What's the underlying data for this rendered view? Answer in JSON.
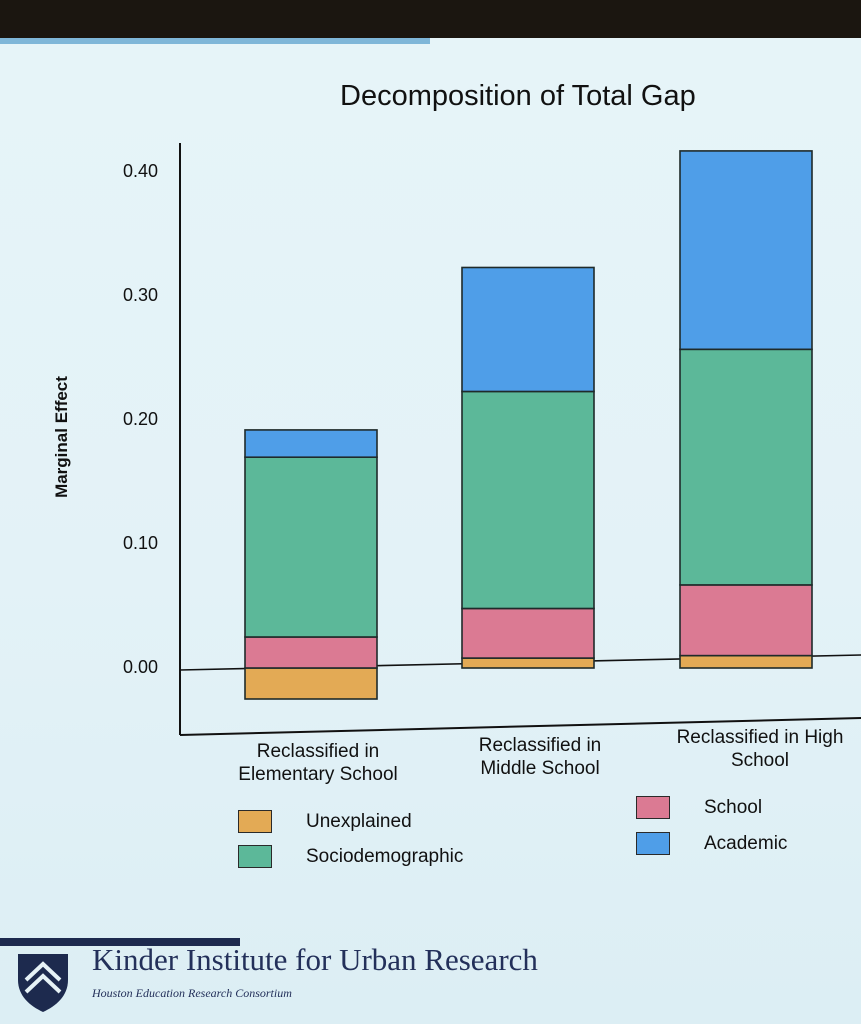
{
  "chart_data": {
    "type": "bar",
    "stacked": true,
    "title": "Decomposition of Total Gap",
    "ylabel": "Marginal Effect",
    "xlabel": "",
    "ylim": [
      -0.03,
      0.43
    ],
    "yticks": [
      "0.00",
      "0.10",
      "0.20",
      "0.30",
      "0.40"
    ],
    "categories": [
      "Reclassified in Elementary School",
      "Reclassified in Middle School",
      "Reclassified in High School"
    ],
    "category_lines": [
      [
        "Reclassified in",
        "Elementary School"
      ],
      [
        "Reclassified in",
        "Middle School"
      ],
      [
        "Reclassified in High",
        "School"
      ]
    ],
    "series": [
      {
        "name": "Unexplained",
        "color": "#e3aa55",
        "values": [
          -0.025,
          0.008,
          0.01
        ]
      },
      {
        "name": "School",
        "color": "#db7a93",
        "values": [
          0.025,
          0.04,
          0.057
        ]
      },
      {
        "name": "Sociodemographic",
        "color": "#5cb899",
        "values": [
          0.145,
          0.175,
          0.19
        ]
      },
      {
        "name": "Academic",
        "color": "#4f9ee8",
        "values": [
          0.022,
          0.1,
          0.16
        ]
      }
    ],
    "legend_position": "bottom"
  },
  "footer": {
    "org": "Kinder Institute for Urban Research",
    "sub": "Houston Education Research Consortium"
  }
}
